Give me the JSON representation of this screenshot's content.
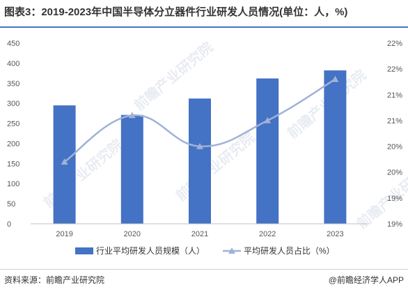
{
  "title": "图表3：2019-2023年中国半导体分立器件行业研发人员情况(单位：人，%)",
  "source": "资料来源：前瞻产业研究院",
  "credit": "@前瞻经济学人APP",
  "colors": {
    "bar": "#4472c4",
    "line": "#9fb2d6",
    "accent": "#4472c4"
  },
  "chart_data": {
    "type": "bar",
    "categories": [
      "2019",
      "2020",
      "2021",
      "2022",
      "2023"
    ],
    "series": [
      {
        "name": "行业平均研发人员规模（人）",
        "type": "bar",
        "axis": "left",
        "values": [
          295,
          271,
          312,
          362,
          382
        ]
      },
      {
        "name": "平均研发人员占比（%）",
        "type": "line",
        "axis": "right",
        "values": [
          20.2,
          21.1,
          20.5,
          21.0,
          21.8
        ]
      }
    ],
    "left_axis": {
      "ylim": [
        0,
        450
      ],
      "ticks": [
        "0",
        "50",
        "100",
        "150",
        "200",
        "250",
        "300",
        "350",
        "400",
        "450"
      ]
    },
    "right_axis": {
      "ylim": [
        19,
        22.5
      ],
      "ticks": [
        "19%",
        "19%",
        "20%",
        "20%",
        "21%",
        "21%",
        "22%",
        "22%"
      ]
    },
    "legend": "bottom-center",
    "grid": false
  }
}
